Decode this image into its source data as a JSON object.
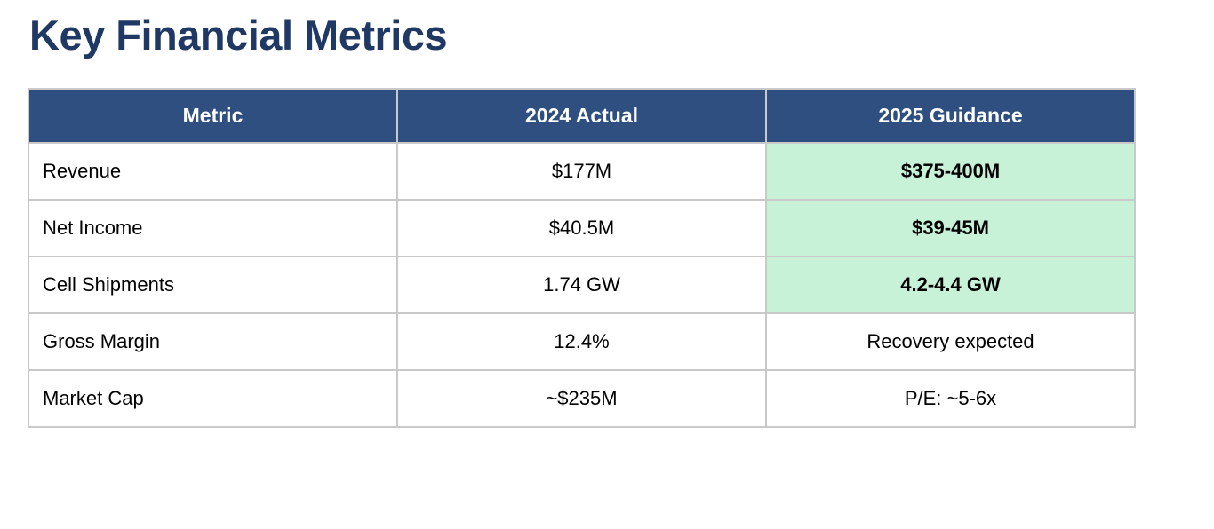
{
  "page": {
    "title": "Key Financial Metrics"
  },
  "table": {
    "columns": [
      {
        "label": "Metric"
      },
      {
        "label": "2024 Actual"
      },
      {
        "label": "2025 Guidance"
      }
    ],
    "rows": [
      {
        "metric": "Revenue",
        "actual_2024": "$177M",
        "guidance_2025": "$375-400M",
        "guidance_highlighted": true
      },
      {
        "metric": "Net Income",
        "actual_2024": "$40.5M",
        "guidance_2025": "$39-45M",
        "guidance_highlighted": true
      },
      {
        "metric": "Cell Shipments",
        "actual_2024": "1.74 GW",
        "guidance_2025": "4.2-4.4 GW",
        "guidance_highlighted": true
      },
      {
        "metric": "Gross Margin",
        "actual_2024": "12.4%",
        "guidance_2025": "Recovery expected",
        "guidance_highlighted": false
      },
      {
        "metric": "Market Cap",
        "actual_2024": "~$235M",
        "guidance_2025": "P/E: ~5-6x",
        "guidance_highlighted": false
      }
    ]
  },
  "colors": {
    "title_text": "#1F3864",
    "header_background": "#2E4F7F",
    "header_text": "#FFFFFF",
    "highlight_green": "#C7F2D8",
    "border_gray": "#C9C9C9",
    "body_text": "#000000"
  }
}
